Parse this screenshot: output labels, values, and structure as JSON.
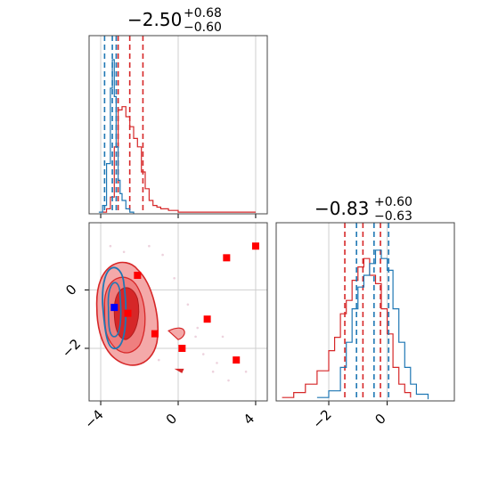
{
  "chart_data": [
    {
      "type": "line",
      "panel": "top-left marginal histogram",
      "title": {
        "main": "−2.50",
        "sup": "+0.68",
        "sub": "−0.60"
      },
      "x_range": [
        -4.6,
        4.6
      ],
      "grid": true,
      "x_ticks": [
        -4,
        0,
        4
      ],
      "series": [
        {
          "color": "#d62728",
          "x": [
            -3.9,
            -3.7,
            -3.5,
            -3.3,
            -3.1,
            -2.9,
            -2.7,
            -2.5,
            -2.3,
            -2.1,
            -1.9,
            -1.7,
            -1.5,
            -1.3,
            -1.1,
            -0.9,
            -0.5,
            0.0,
            1.0,
            2.0,
            3.0,
            4.0
          ],
          "y": [
            0.01,
            0.03,
            0.1,
            0.4,
            0.62,
            0.64,
            0.58,
            0.52,
            0.45,
            0.4,
            0.25,
            0.15,
            0.08,
            0.05,
            0.04,
            0.03,
            0.02,
            0.01,
            0.01,
            0.01,
            0.01,
            0.01
          ],
          "quantiles": [
            -3.1,
            -2.5,
            -1.82
          ]
        },
        {
          "color": "#1f77b4",
          "x": [
            -4.1,
            -3.9,
            -3.7,
            -3.5,
            -3.4,
            -3.3,
            -3.2,
            -3.1,
            -3.0,
            -2.9,
            -2.7,
            -2.5,
            -2.3
          ],
          "y": [
            0.01,
            0.05,
            0.3,
            0.75,
            0.92,
            0.7,
            0.4,
            0.2,
            0.12,
            0.08,
            0.03,
            0.01,
            0.0
          ],
          "quantiles": [
            -3.8,
            -3.4,
            -3.2
          ]
        }
      ]
    },
    {
      "type": "scatter",
      "panel": "bottom-left 2D contour",
      "x_range": [
        -4.6,
        4.6
      ],
      "y_range": [
        -3.8,
        2.3
      ],
      "grid": true,
      "x_ticks": [
        "−4",
        "0",
        "4"
      ],
      "y_ticks": [
        "0",
        "−2"
      ],
      "points_red": [
        [
          -2.1,
          0.5
        ],
        [
          -2.6,
          -0.8
        ],
        [
          -1.2,
          -1.5
        ],
        [
          1.5,
          -1.0
        ],
        [
          2.5,
          1.1
        ],
        [
          0.2,
          -2.0
        ],
        [
          4.0,
          1.5
        ],
        [
          3.0,
          -2.4
        ]
      ],
      "points_blue": [
        [
          -3.3,
          -0.6
        ]
      ],
      "contours": [
        "red filled 1/2/3-sigma levels",
        "blue outline levels"
      ]
    },
    {
      "type": "line",
      "panel": "bottom-right marginal histogram",
      "title": {
        "main": "−0.83",
        "sup": "+0.60",
        "sub": "−0.63"
      },
      "x_range": [
        -3.8,
        2.3
      ],
      "grid": true,
      "x_ticks": [
        "−2",
        "0"
      ],
      "series": [
        {
          "color": "#d62728",
          "x": [
            -3.6,
            -3.2,
            -2.8,
            -2.4,
            -2.0,
            -1.8,
            -1.6,
            -1.4,
            -1.2,
            -1.0,
            -0.8,
            -0.6,
            -0.4,
            -0.2,
            0.0,
            0.2,
            0.4,
            0.6,
            0.8
          ],
          "y": [
            0.02,
            0.05,
            0.1,
            0.18,
            0.3,
            0.38,
            0.52,
            0.6,
            0.72,
            0.8,
            0.85,
            0.75,
            0.7,
            0.55,
            0.4,
            0.2,
            0.1,
            0.05,
            0.02
          ],
          "quantiles": [
            -1.45,
            -0.83,
            -0.23
          ]
        },
        {
          "color": "#1f77b4",
          "x": [
            -2.4,
            -2.0,
            -1.6,
            -1.4,
            -1.2,
            -1.0,
            -0.8,
            -0.6,
            -0.4,
            -0.2,
            0.0,
            0.2,
            0.4,
            0.6,
            0.8,
            1.0,
            1.4
          ],
          "y": [
            0.02,
            0.06,
            0.2,
            0.35,
            0.55,
            0.68,
            0.75,
            0.82,
            0.9,
            0.85,
            0.78,
            0.55,
            0.35,
            0.2,
            0.1,
            0.04,
            0.01
          ],
          "quantiles": [
            -1.05,
            -0.45,
            0.05
          ]
        }
      ]
    }
  ]
}
